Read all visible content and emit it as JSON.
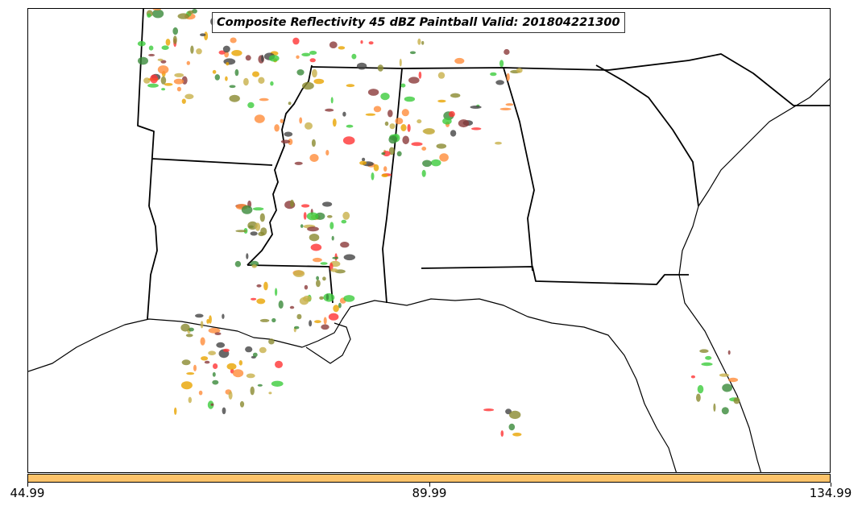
{
  "title": "Composite Reflectivity 45 dBZ Paintball Valid: 201804221300",
  "colorbar": {
    "color": "#fdc36a",
    "tick_labels": [
      "44.99",
      "89.99",
      "134.99"
    ]
  },
  "palette": {
    "light_green": "#3ccc3c",
    "dark_green": "#3a8a3a",
    "red": "#ff3333",
    "orange": "#ff8c3a",
    "gold": "#e8a400",
    "olive": "#8a8a30",
    "brown": "#8b3a3a",
    "gray": "#444444",
    "khaki": "#c8b04a"
  },
  "legend": []
}
